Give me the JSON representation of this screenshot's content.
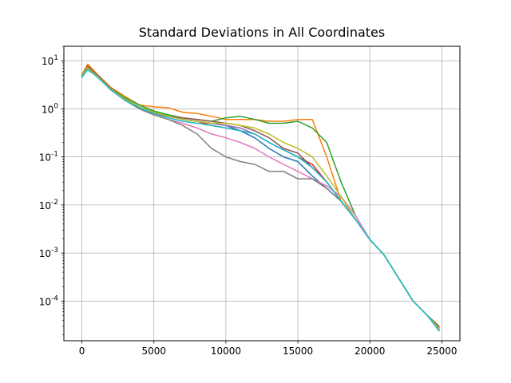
{
  "chart_data": {
    "type": "line",
    "title": "Standard Deviations in All Coordinates",
    "xlabel": "",
    "ylabel": "",
    "xlim": [
      -1250,
      26250
    ],
    "ylim": [
      1.5e-05,
      20
    ],
    "yscale": "log",
    "grid": true,
    "x_ticks": [
      0,
      5000,
      10000,
      15000,
      20000,
      25000
    ],
    "x_tick_labels": [
      "0",
      "5000",
      "10000",
      "15000",
      "20000",
      "25000"
    ],
    "y_ticks": [
      0.0001,
      0.001,
      0.01,
      0.1,
      1,
      10
    ],
    "y_tick_labels": [
      "10^-4",
      "10^-3",
      "10^-2",
      "10^-1",
      "10^0",
      "10^1"
    ],
    "series": [
      {
        "color": "#1f77b4",
        "x": [
          0,
          400,
          1000,
          2000,
          3000,
          4000,
          5000,
          6000,
          7000,
          8000,
          9000,
          10000,
          11000,
          12000,
          13000,
          14000,
          15000,
          16000,
          17000,
          18000,
          19000,
          20000,
          21000,
          22000,
          23000,
          24000,
          24800
        ],
        "y": [
          4.5,
          7,
          5,
          2.6,
          1.6,
          1.1,
          0.85,
          0.7,
          0.6,
          0.55,
          0.5,
          0.45,
          0.35,
          0.25,
          0.15,
          0.1,
          0.08,
          0.04,
          0.022,
          0.012,
          0.005,
          0.0019,
          0.0009,
          0.0003,
          0.0001,
          5e-05,
          2.5e-05
        ]
      },
      {
        "color": "#ff7f0e",
        "x": [
          0,
          400,
          1000,
          2000,
          3000,
          4000,
          5000,
          6000,
          7000,
          8000,
          9000,
          10000,
          11000,
          12000,
          13000,
          14000,
          15000,
          16000,
          17000,
          18000,
          19000,
          20000,
          21000,
          22000,
          23000,
          24000,
          24800
        ],
        "y": [
          5,
          8.5,
          5.5,
          2.8,
          1.8,
          1.2,
          1.1,
          1.05,
          0.85,
          0.8,
          0.7,
          0.6,
          0.6,
          0.6,
          0.55,
          0.55,
          0.6,
          0.6,
          0.1,
          0.012,
          0.005,
          0.0019,
          0.0009,
          0.0003,
          0.0001,
          5e-05,
          2.8e-05
        ]
      },
      {
        "color": "#2ca02c",
        "x": [
          0,
          400,
          1000,
          2000,
          3000,
          4000,
          5000,
          6000,
          7000,
          8000,
          9000,
          10000,
          11000,
          12000,
          13000,
          14000,
          15000,
          16000,
          17000,
          18000,
          19000,
          20000,
          21000,
          22000,
          23000,
          24000,
          24800
        ],
        "y": [
          5,
          7.5,
          5.2,
          2.7,
          1.7,
          1.2,
          0.9,
          0.75,
          0.65,
          0.6,
          0.55,
          0.65,
          0.7,
          0.6,
          0.5,
          0.5,
          0.55,
          0.4,
          0.2,
          0.03,
          0.006,
          0.0019,
          0.0009,
          0.0003,
          0.0001,
          5e-05,
          3e-05
        ]
      },
      {
        "color": "#d62728",
        "x": [
          0,
          400,
          1000,
          2000,
          3000,
          4000,
          5000,
          6000,
          7000,
          8000,
          9000,
          10000,
          11000,
          12000,
          13000,
          14000,
          15000,
          16000,
          17000,
          18000,
          19000,
          20000,
          21000,
          22000,
          23000,
          24000,
          24800
        ],
        "y": [
          5,
          7.2,
          5,
          2.5,
          1.5,
          1.05,
          0.8,
          0.7,
          0.6,
          0.55,
          0.45,
          0.4,
          0.35,
          0.3,
          0.2,
          0.14,
          0.1,
          0.07,
          0.03,
          0.012,
          0.005,
          0.0019,
          0.0009,
          0.0003,
          0.0001,
          5e-05,
          2.8e-05
        ]
      },
      {
        "color": "#9467bd",
        "x": [
          0,
          400,
          1000,
          2000,
          3000,
          4000,
          5000,
          6000,
          7000,
          8000,
          9000,
          10000,
          11000,
          12000,
          13000,
          14000,
          15000,
          16000,
          17000,
          18000,
          19000,
          20000,
          21000,
          22000,
          23000,
          24000,
          24800
        ],
        "y": [
          5,
          7,
          5,
          2.6,
          1.6,
          1.1,
          0.85,
          0.7,
          0.6,
          0.55,
          0.5,
          0.45,
          0.4,
          0.3,
          0.2,
          0.14,
          0.1,
          0.06,
          0.03,
          0.012,
          0.005,
          0.0019,
          0.0009,
          0.0003,
          0.0001,
          5e-05,
          2.7e-05
        ]
      },
      {
        "color": "#8c564b",
        "x": [
          0,
          400,
          1000,
          2000,
          3000,
          4000,
          5000,
          6000,
          7000,
          8000,
          9000,
          10000,
          11000,
          12000,
          13000,
          14000,
          15000,
          16000,
          17000,
          18000,
          19000,
          20000,
          21000,
          22000,
          23000,
          24000,
          24800
        ],
        "y": [
          5,
          7.8,
          5.3,
          2.7,
          1.6,
          1.1,
          0.85,
          0.7,
          0.65,
          0.6,
          0.55,
          0.5,
          0.45,
          0.35,
          0.25,
          0.15,
          0.12,
          0.06,
          0.03,
          0.012,
          0.005,
          0.0019,
          0.0009,
          0.0003,
          0.0001,
          5e-05,
          3e-05
        ]
      },
      {
        "color": "#e377c2",
        "x": [
          0,
          400,
          1000,
          2000,
          3000,
          4000,
          5000,
          6000,
          7000,
          8000,
          9000,
          10000,
          11000,
          12000,
          13000,
          14000,
          15000,
          16000,
          17000,
          18000,
          19000,
          20000,
          21000,
          22000,
          23000,
          24000,
          24800
        ],
        "y": [
          4.8,
          7,
          5,
          2.5,
          1.5,
          1,
          0.75,
          0.6,
          0.5,
          0.4,
          0.3,
          0.25,
          0.2,
          0.15,
          0.1,
          0.07,
          0.05,
          0.035,
          0.025,
          0.015,
          0.006,
          0.0019,
          0.0009,
          0.0003,
          0.0001,
          5e-05,
          2.6e-05
        ]
      },
      {
        "color": "#7f7f7f",
        "x": [
          0,
          400,
          1000,
          2000,
          3000,
          4000,
          5000,
          6000,
          7000,
          8000,
          9000,
          10000,
          11000,
          12000,
          13000,
          14000,
          15000,
          16000,
          17000,
          18000,
          19000,
          20000,
          21000,
          22000,
          23000,
          24000,
          24800
        ],
        "y": [
          4.8,
          7,
          5,
          2.5,
          1.5,
          1,
          0.75,
          0.6,
          0.45,
          0.3,
          0.15,
          0.1,
          0.08,
          0.07,
          0.05,
          0.05,
          0.035,
          0.035,
          0.022,
          0.012,
          0.005,
          0.0019,
          0.0009,
          0.0003,
          0.0001,
          5e-05,
          2.6e-05
        ]
      },
      {
        "color": "#bcbd22",
        "x": [
          0,
          400,
          1000,
          2000,
          3000,
          4000,
          5000,
          6000,
          7000,
          8000,
          9000,
          10000,
          11000,
          12000,
          13000,
          14000,
          15000,
          16000,
          17000,
          18000,
          19000,
          20000,
          21000,
          22000,
          23000,
          24000,
          24800
        ],
        "y": [
          4.8,
          7.2,
          5,
          2.6,
          1.6,
          1.1,
          0.85,
          0.7,
          0.6,
          0.55,
          0.5,
          0.5,
          0.45,
          0.4,
          0.3,
          0.2,
          0.15,
          0.1,
          0.04,
          0.015,
          0.005,
          0.0019,
          0.0009,
          0.0003,
          0.0001,
          5e-05,
          2.7e-05
        ]
      },
      {
        "color": "#17becf",
        "x": [
          0,
          400,
          1000,
          2000,
          3000,
          4000,
          5000,
          6000,
          7000,
          8000,
          9000,
          10000,
          11000,
          12000,
          13000,
          14000,
          15000,
          16000,
          17000,
          18000,
          19000,
          20000,
          21000,
          22000,
          23000,
          24000,
          24800
        ],
        "y": [
          4.5,
          6.5,
          4.8,
          2.5,
          1.5,
          1.05,
          0.8,
          0.65,
          0.55,
          0.5,
          0.45,
          0.4,
          0.35,
          0.3,
          0.2,
          0.14,
          0.1,
          0.06,
          0.03,
          0.012,
          0.005,
          0.0019,
          0.0009,
          0.0003,
          0.0001,
          5e-05,
          2.4e-05
        ]
      }
    ]
  }
}
